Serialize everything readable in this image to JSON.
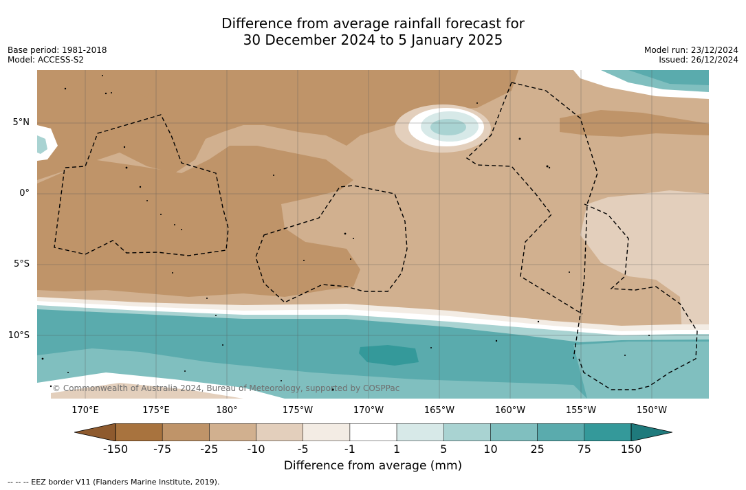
{
  "title": {
    "line1": "Difference from average rainfall forecast for",
    "line2": "30 December 2024 to 5 January 2025"
  },
  "meta_left": {
    "base_period": "Base period: 1981-2018",
    "model": "Model: ACCESS-S2"
  },
  "meta_right": {
    "model_run": "Model run: 23/12/2024",
    "issued": "Issued: 26/12/2024"
  },
  "copyright": "© Commonwealth of Australia 2024, Bureau of Meteorology, supported by COSPPac",
  "latitude_labels": [
    "5°N",
    "0°",
    "5°S",
    "10°S"
  ],
  "longitude_labels": [
    "170°E",
    "175°E",
    "180°",
    "175°W",
    "170°W",
    "165°W",
    "160°W",
    "155°W",
    "150°W"
  ],
  "colorbar": {
    "ticks": [
      "-150",
      "-75",
      "-25",
      "-10",
      "-5",
      "-1",
      "1",
      "5",
      "10",
      "25",
      "75",
      "150"
    ],
    "colors": [
      "#8e5a2e",
      "#a8733e",
      "#bf9469",
      "#d1b08f",
      "#e3cfbc",
      "#f3ece4",
      "#ffffff",
      "#d7e9e8",
      "#a9d3d2",
      "#80bfbf",
      "#5aabad",
      "#34999a",
      "#1f7a7c"
    ],
    "title": "Difference from average (mm)"
  },
  "footnote": "-- -- -- EEZ border V11 (Flanders Marine Institute, 2019)."
}
